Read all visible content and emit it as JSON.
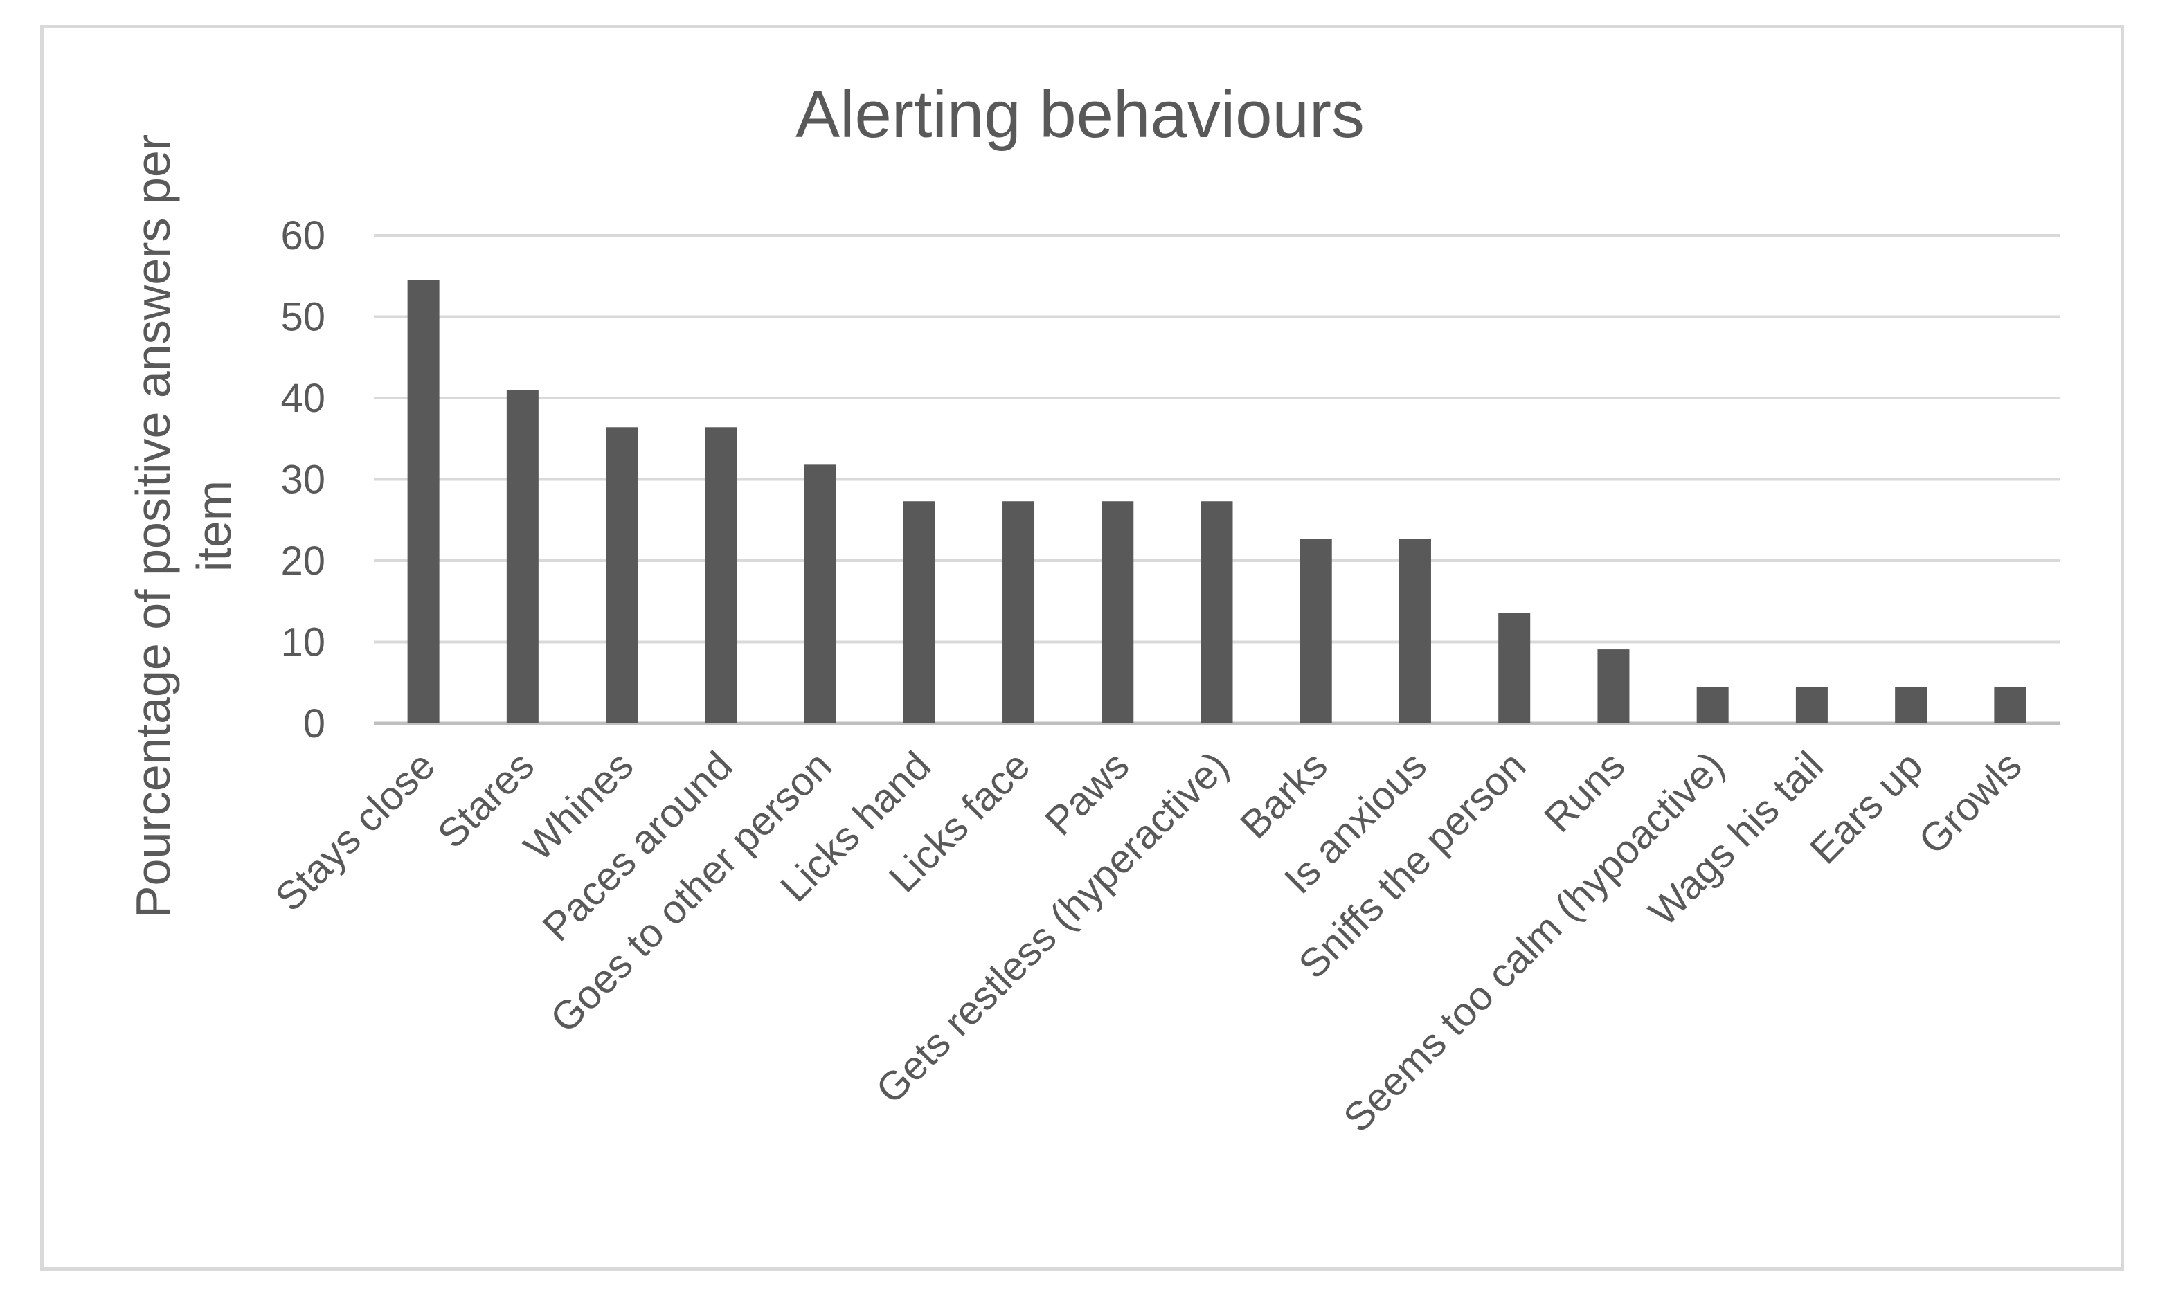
{
  "chart_data": {
    "type": "bar",
    "title": "Alerting behaviours",
    "xlabel": "",
    "ylabel": "Pourcentage of positive answers per item",
    "ylabel_lines": [
      "Pourcentage of positive answers per",
      "item"
    ],
    "ylim": [
      0,
      60
    ],
    "yticks": [
      "0",
      "10",
      "20",
      "30",
      "40",
      "50",
      "60"
    ],
    "grid": true,
    "legend": "none",
    "bar_color": "#595959",
    "categories": [
      "Stays close",
      "Stares",
      "Whines",
      "Paces around",
      "Goes to other person",
      "Licks hand",
      "Licks face",
      "Paws",
      "Gets restless (hyperactive)",
      "Barks",
      "Is anxious",
      "Sniffs the person",
      "Runs",
      "Seems too calm (hypoactive)",
      "Wags his tail",
      "Ears up",
      "Growls"
    ],
    "values": [
      54.5,
      41,
      36.4,
      36.4,
      31.8,
      27.3,
      27.3,
      27.3,
      27.3,
      22.7,
      22.7,
      13.6,
      9.1,
      4.5,
      4.5,
      4.5,
      4.5
    ]
  }
}
